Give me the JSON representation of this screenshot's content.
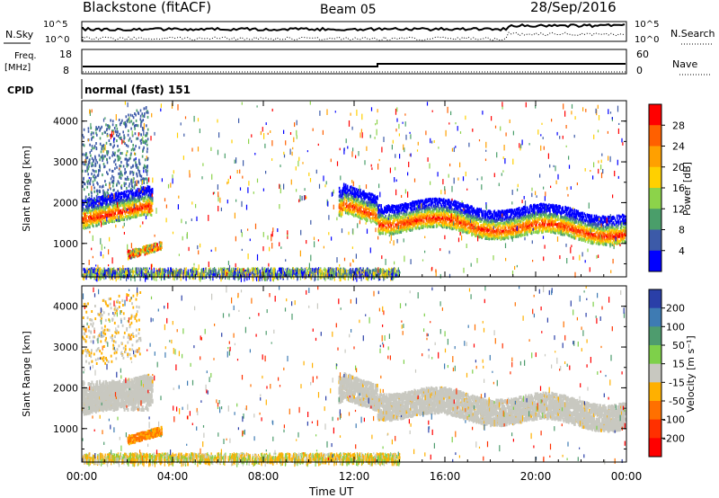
{
  "header": {
    "station": "Blackstone (fitACF)",
    "beam": "Beam 05",
    "date": "28/Sep/2016"
  },
  "noise_panel": {
    "left_label": "N.Sky",
    "right_label": "N.Search",
    "left_ticks": [
      "10^5",
      "10^0"
    ],
    "right_ticks": [
      "10^5",
      "10^0"
    ]
  },
  "freq_panel": {
    "left_label_1": "Freq.",
    "left_label_2": "[MHz]",
    "right_label": "Nave",
    "left_ticks": [
      "18",
      "8"
    ],
    "right_ticks": [
      "60",
      "0"
    ]
  },
  "cpid_panel": {
    "label": "CPID",
    "mode": "normal (fast) 151"
  },
  "chart_data": [
    {
      "type": "heatmap",
      "panel": "power",
      "ylabel": "Slant Range [km]",
      "xlabel": "Time UT",
      "ylim": [
        180,
        4500
      ],
      "yticks": [
        1000,
        2000,
        3000,
        4000
      ],
      "xlim": [
        0,
        24
      ],
      "xticks": [
        0,
        4,
        8,
        12,
        16,
        20,
        24
      ],
      "xtick_labels": [
        "00:00",
        "04:00",
        "08:00",
        "12:00",
        "16:00",
        "20:00",
        "00:00"
      ],
      "colorbar": {
        "label": "Power [dB]",
        "ticks": [
          "28",
          "24",
          "20",
          "16",
          "12",
          "8",
          "4"
        ],
        "colors": [
          "#ff0000",
          "#ff6000",
          "#ffa000",
          "#ffd000",
          "#8cd34a",
          "#4a9e6a",
          "#3c5aa8",
          "#0000ff"
        ]
      },
      "features": [
        {
          "name": "dayside echo band",
          "range_km_start": 1600,
          "range_km_end": 1250,
          "time_start": 0,
          "time_end": 24
        },
        {
          "name": "early high-range echoes",
          "range_km": [
            2600,
            4400
          ],
          "time": [
            0,
            3
          ]
        },
        {
          "name": "near-range echo patch",
          "range_km": [
            650,
            900
          ],
          "time": [
            2,
            3.5
          ]
        },
        {
          "name": "ground scatter near range",
          "range_km": [
            180,
            400
          ],
          "time": [
            0,
            14
          ]
        }
      ]
    },
    {
      "type": "heatmap",
      "panel": "velocity",
      "ylabel": "Slant Range [km]",
      "xlabel": "Time UT",
      "ylim": [
        180,
        4500
      ],
      "yticks": [
        1000,
        2000,
        3000,
        4000
      ],
      "xlim": [
        0,
        24
      ],
      "xticks": [
        0,
        4,
        8,
        12,
        16,
        20,
        24
      ],
      "xtick_labels": [
        "00:00",
        "04:00",
        "08:00",
        "12:00",
        "16:00",
        "20:00",
        "00:00"
      ],
      "colorbar": {
        "label": "Velocity [m s⁻¹]",
        "ticks": [
          "200",
          "100",
          "50",
          "15",
          "-15",
          "-50",
          "-100",
          "-200"
        ],
        "colors": [
          "#2a3fa8",
          "#3e7bb3",
          "#4e9c6e",
          "#7ed04a",
          "#c8c8c0",
          "#ffb000",
          "#ff7000",
          "#ff3000",
          "#ff0000"
        ]
      },
      "features": [
        {
          "name": "low-velocity band",
          "range_km_start": 1800,
          "range_km_end": 1500,
          "time_start": 0,
          "time_end": 24
        },
        {
          "name": "near-range echo patch",
          "range_km": [
            650,
            900
          ],
          "time": [
            2,
            3.5
          ]
        }
      ]
    }
  ]
}
